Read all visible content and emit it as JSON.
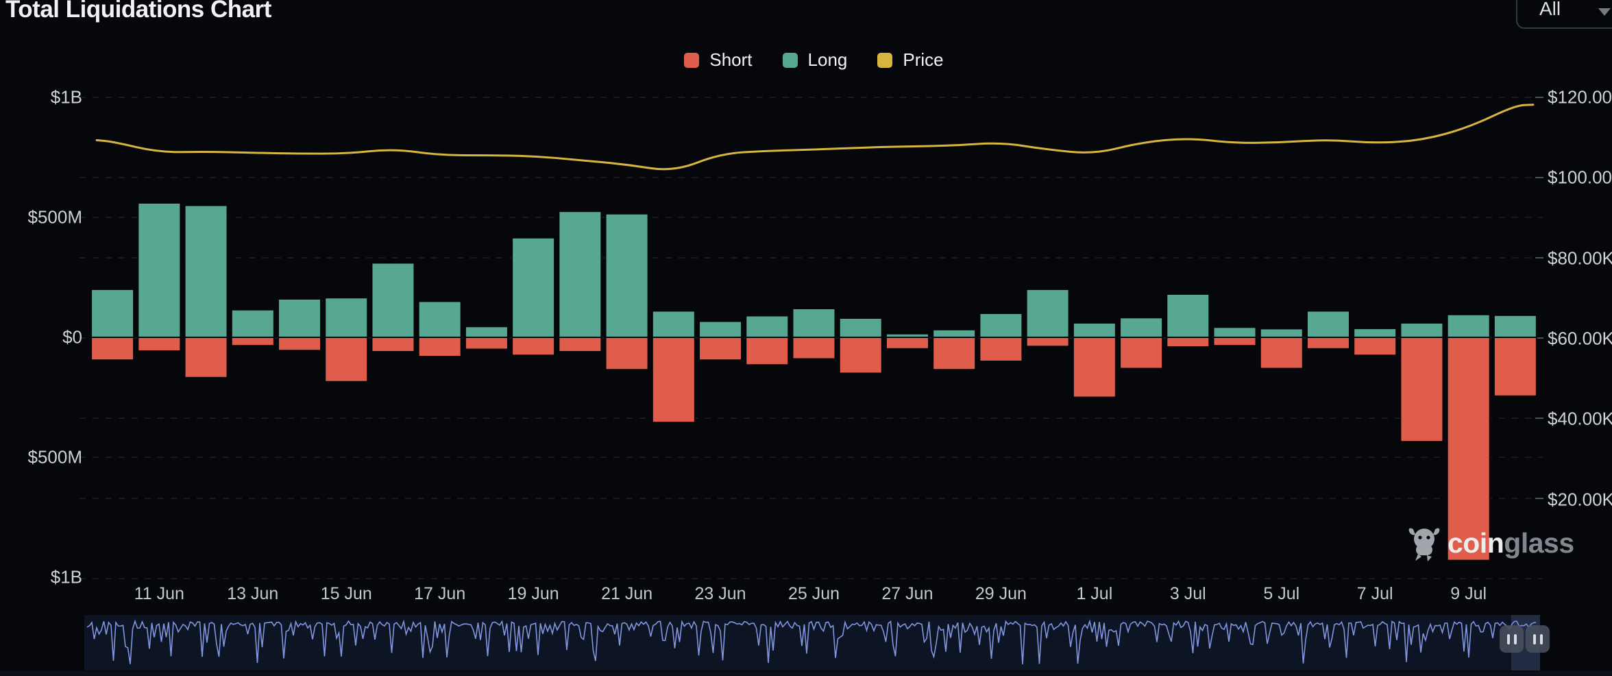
{
  "header": {
    "title": "Total Liquidations Chart",
    "range_selector": {
      "value": "All"
    }
  },
  "legend": [
    {
      "label": "Short",
      "color": "#e05c4b"
    },
    {
      "label": "Long",
      "color": "#58a792"
    },
    {
      "label": "Price",
      "color": "#d7b53f"
    }
  ],
  "watermark": {
    "brand_bold": "coin",
    "brand_light": "glass"
  },
  "chart_data": {
    "type": "bar",
    "subtype": "stacked-diverging-bars-with-line",
    "categories": [
      "10 Jun",
      "11 Jun",
      "12 Jun",
      "13 Jun",
      "14 Jun",
      "15 Jun",
      "16 Jun",
      "17 Jun",
      "18 Jun",
      "19 Jun",
      "20 Jun",
      "21 Jun",
      "22 Jun",
      "23 Jun",
      "24 Jun",
      "25 Jun",
      "26 Jun",
      "27 Jun",
      "28 Jun",
      "29 Jun",
      "30 Jun",
      "1 Jul",
      "2 Jul",
      "3 Jul",
      "4 Jul",
      "5 Jul",
      "6 Jul",
      "7 Jul",
      "8 Jul",
      "9 Jul",
      "10 Jul"
    ],
    "series": [
      {
        "name": "Long",
        "unit": "$M",
        "axis": "left",
        "color": "#58a792",
        "values": [
          200,
          560,
          550,
          115,
          160,
          165,
          310,
          150,
          45,
          415,
          525,
          515,
          110,
          67,
          90,
          120,
          80,
          15,
          32,
          100,
          200,
          60,
          82,
          180,
          42,
          36,
          110,
          37,
          60,
          95,
          92
        ]
      },
      {
        "name": "Short",
        "unit": "$M",
        "axis": "left",
        "color": "#e05c4b",
        "values": [
          -95,
          -57,
          -168,
          -35,
          -55,
          -185,
          -60,
          -80,
          -50,
          -75,
          -60,
          -135,
          -355,
          -95,
          -115,
          -90,
          -150,
          -48,
          -135,
          -100,
          -38,
          -250,
          -130,
          -40,
          -35,
          -130,
          -48,
          -75,
          -435,
          -930,
          -245
        ]
      },
      {
        "name": "Price",
        "unit": "$K",
        "axis": "right",
        "color": "#d7b53f",
        "values": [
          109.0,
          106.3,
          106.5,
          106.2,
          106.0,
          106.0,
          107.2,
          105.6,
          105.6,
          105.4,
          104.4,
          103.3,
          101.5,
          106.0,
          106.7,
          107.0,
          107.5,
          107.8,
          108.0,
          108.8,
          107.0,
          105.9,
          108.8,
          109.9,
          108.6,
          108.8,
          109.5,
          108.6,
          109.3,
          112.5,
          118.0
        ]
      }
    ],
    "x_tick_labels": [
      "11 Jun",
      "13 Jun",
      "15 Jun",
      "17 Jun",
      "19 Jun",
      "21 Jun",
      "23 Jun",
      "25 Jun",
      "27 Jun",
      "29 Jun",
      "1 Jul",
      "3 Jul",
      "5 Jul",
      "7 Jul",
      "9 Jul"
    ],
    "left_axis": {
      "labels": [
        "$1B",
        "$500M",
        "$0",
        "$500M",
        "$1B"
      ],
      "values_musd": [
        1000,
        500,
        0,
        -500,
        -1000
      ]
    },
    "right_axis": {
      "labels": [
        "$120.00K",
        "$100.00K",
        "$80.00K",
        "$60.00K",
        "$40.00K",
        "$20.00K"
      ],
      "values_kusd": [
        120,
        100,
        80,
        60,
        40,
        20
      ]
    },
    "grid": "dashed",
    "legend_position": "top-center"
  },
  "colors": {
    "background": "#05070b",
    "long": "#58a792",
    "short": "#e05c4b",
    "price": "#d7b53f",
    "grid": "rgba(150,160,180,0.13)",
    "navigator_bg": "#0d1524",
    "navigator_line": "#8296df",
    "navigator_band": "rgba(120,140,195,0.20)"
  }
}
